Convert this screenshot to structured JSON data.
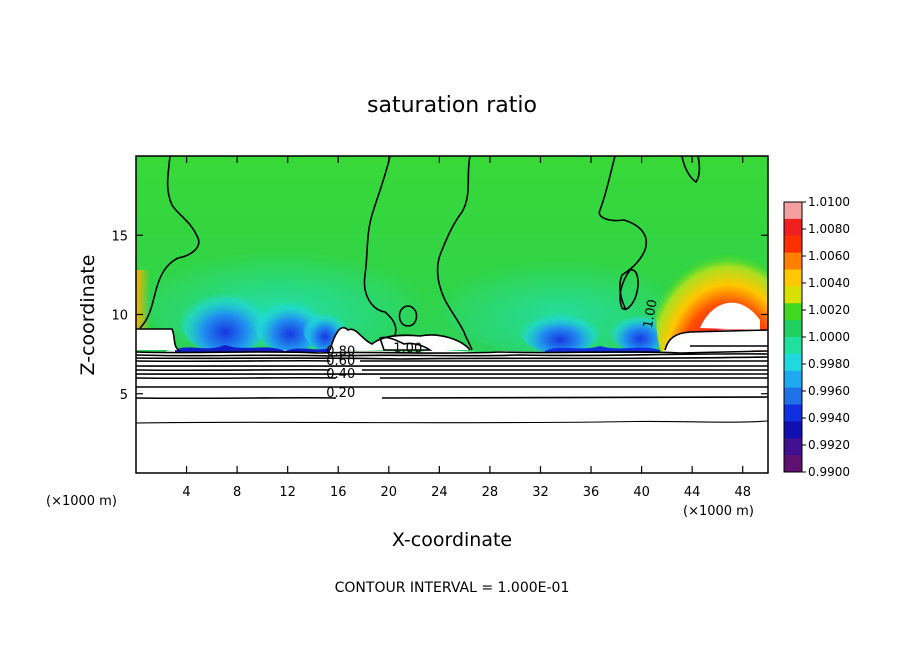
{
  "chart_data": {
    "type": "heatmap",
    "title": "saturation ratio",
    "xlabel": "X-coordinate",
    "ylabel": "Z-coordinate",
    "x_unit": "(×1000 m)",
    "x_unit_right": "(×1000 m)",
    "xlim": [
      0,
      50
    ],
    "ylim": [
      0,
      20
    ],
    "x_ticks": [
      4,
      8,
      12,
      16,
      20,
      24,
      28,
      32,
      36,
      40,
      44,
      48
    ],
    "y_ticks": [
      5,
      10,
      15
    ],
    "colorbar": {
      "min": 0.99,
      "max": 1.01,
      "labels": [
        "1.0100",
        "1.0080",
        "1.0060",
        "1.0040",
        "1.0020",
        "1.0000",
        "0.9980",
        "0.9960",
        "0.9940",
        "0.9920",
        "0.9900"
      ],
      "colors": [
        "#f5a0a0",
        "#f02020",
        "#ff3000",
        "#ff8000",
        "#ffc800",
        "#d8e000",
        "#40d820",
        "#20d060",
        "#20e0a0",
        "#20d8e0",
        "#20a8f0",
        "#2070e8",
        "#1030e0",
        "#1010b0",
        "#401090",
        "#601070"
      ]
    },
    "contour_labels": [
      {
        "text": "0.20",
        "value": 0.2,
        "x": 16.2,
        "z": 4.8
      },
      {
        "text": "0.40",
        "value": 0.4,
        "x": 16.2,
        "z": 6.0
      },
      {
        "text": "0.60",
        "value": 0.6,
        "x": 16.2,
        "z": 6.8
      },
      {
        "text": "0.80",
        "value": 0.8,
        "x": 16.2,
        "z": 7.4
      },
      {
        "text": "1.00",
        "value": 1.0,
        "x": 21.5,
        "z": 7.6
      },
      {
        "text": "1.00",
        "value": 1.0,
        "x": 41.0,
        "z": 10.0
      }
    ],
    "footer": "CONTOUR INTERVAL = 1.000E-01"
  }
}
